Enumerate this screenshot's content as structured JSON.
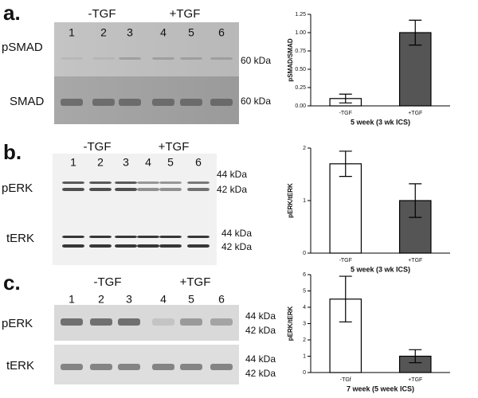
{
  "panels": [
    {
      "letter": "a.",
      "groups": [
        "-TGF",
        "+TGF"
      ],
      "lanes": [
        "1",
        "2",
        "3",
        "4",
        "5",
        "6"
      ],
      "rows": [
        {
          "label": "pSMAD",
          "markers": [
            "60 kDa"
          ]
        },
        {
          "label": "SMAD",
          "markers": [
            "60 kDa"
          ]
        }
      ]
    },
    {
      "letter": "b.",
      "groups": [
        "-TGF",
        "+TGF"
      ],
      "lanes": [
        "1",
        "2",
        "3",
        "4",
        "5",
        "6"
      ],
      "rows": [
        {
          "label": "pERK",
          "markers": [
            "44 kDa",
            "42 kDa"
          ]
        },
        {
          "label": "tERK",
          "markers": [
            "44 kDa",
            "42 kDa"
          ]
        }
      ]
    },
    {
      "letter": "c.",
      "groups": [
        "-TGF",
        "+TGF"
      ],
      "lanes": [
        "1",
        "2",
        "3",
        "4",
        "5",
        "6"
      ],
      "rows": [
        {
          "label": "pERK",
          "markers": [
            "44 kDa",
            "42 kDa"
          ]
        },
        {
          "label": "tERK",
          "markers": [
            "44 kDa",
            "42 kDa"
          ]
        }
      ]
    }
  ],
  "chart_data": [
    {
      "type": "bar",
      "ylabel": "pSMAD/SMAD",
      "xlabel": "5 week (3 wk ICS)",
      "categories": [
        "-TGF",
        "+TGF"
      ],
      "values": [
        0.1,
        1.0
      ],
      "errors": [
        0.06,
        0.17
      ],
      "colors": [
        "#ffffff",
        "#555555"
      ],
      "ylim": [
        0,
        1.25
      ],
      "yticks": [
        {
          "value": 0,
          "label": "0.00"
        },
        0.25,
        {
          "value": 0.5,
          "label": "0.50"
        },
        0.75,
        {
          "value": 1,
          "label": "1.00"
        },
        1.25
      ]
    },
    {
      "type": "bar",
      "ylabel": "pERK/tERK",
      "xlabel": "5 week (3 wk ICS)",
      "categories": [
        "-TGF",
        "+TGF"
      ],
      "values": [
        1.7,
        1.0
      ],
      "errors": [
        0.24,
        0.32
      ],
      "colors": [
        "#ffffff",
        "#555555"
      ],
      "ylim": [
        0,
        2
      ],
      "yticks": [
        0,
        1,
        2
      ]
    },
    {
      "type": "bar",
      "ylabel": "pERK/tERK",
      "xlabel": "7 week (5 week ICS)",
      "categories": [
        "-TGf",
        "+TGF"
      ],
      "values": [
        4.5,
        1.0
      ],
      "errors": [
        1.4,
        0.4
      ],
      "colors": [
        "#ffffff",
        "#555555"
      ],
      "ylim": [
        0,
        6
      ],
      "yticks": [
        0,
        1,
        2,
        3,
        4,
        5,
        6
      ]
    }
  ]
}
